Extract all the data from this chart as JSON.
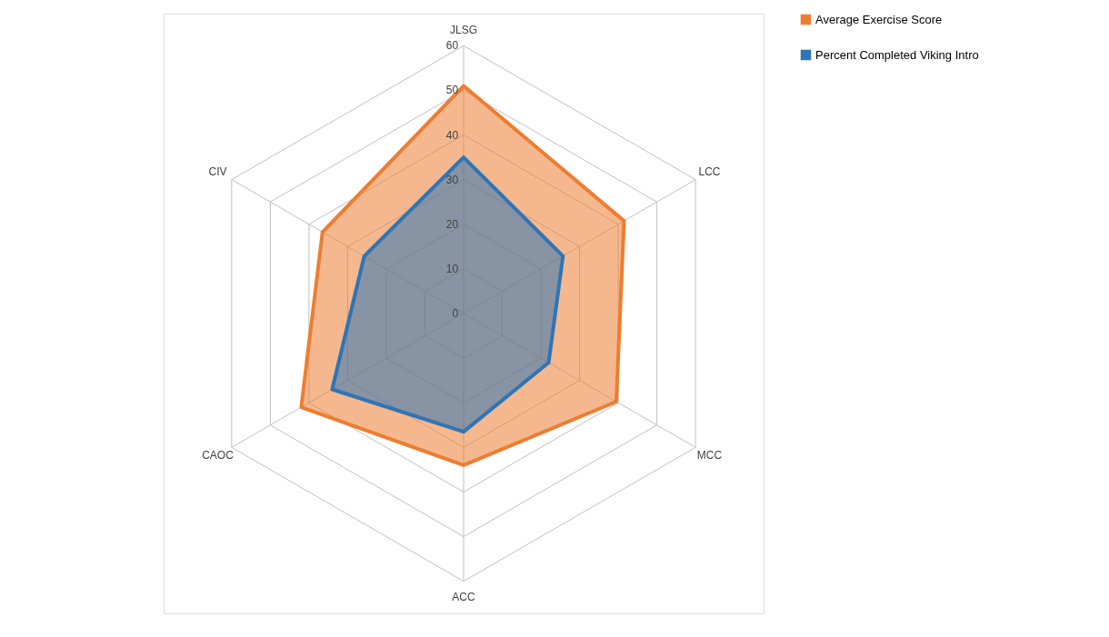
{
  "chart_data": {
    "type": "radar",
    "categories": [
      "JLSG",
      "LCC",
      "MCC",
      "ACC",
      "CAOC",
      "CIV"
    ],
    "series": [
      {
        "name": "Average Exercise Score",
        "color": "#ed7d31",
        "values": [
          51,
          41.5,
          39.5,
          34,
          42,
          36.5
        ]
      },
      {
        "name": "Percent Completed Viking Intro",
        "color": "#2e75b6",
        "values": [
          35,
          25.7,
          22,
          26.5,
          34,
          25.7
        ]
      }
    ],
    "ylim": [
      0,
      60
    ],
    "yticks": [
      0,
      10,
      20,
      30,
      40,
      50,
      60
    ],
    "grid": true,
    "legend": "right"
  }
}
